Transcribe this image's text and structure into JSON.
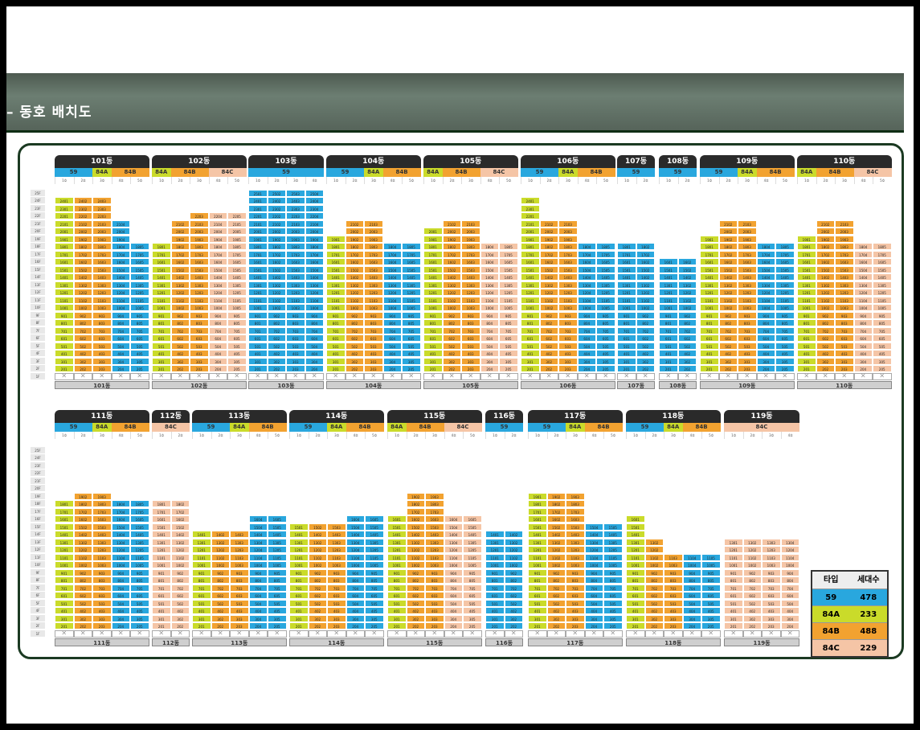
{
  "title": "동호 배치도",
  "colors": {
    "59": "#29a7de",
    "84A": "#cadb2a",
    "84B": "#f2a230",
    "84C": "#f5c5a6"
  },
  "floor_labels": [
    "25F",
    "24F",
    "23F",
    "22F",
    "21F",
    "20F",
    "19F",
    "18F",
    "17F",
    "16F",
    "15F",
    "14F",
    "13F",
    "12F",
    "11F",
    "10F",
    "9F",
    "8F",
    "7F",
    "6F",
    "5F",
    "4F",
    "3F",
    "2F",
    "1F"
  ],
  "buildings": [
    {
      "name": "101동",
      "types": [
        "84A",
        "84B",
        "59"
      ],
      "cols": [
        [
          "84A",
          24
        ],
        [
          "84B",
          24
        ],
        [
          "84B",
          24
        ],
        [
          "59",
          21
        ],
        [
          "59",
          18
        ]
      ]
    },
    {
      "name": "102동",
      "types": [
        "84A",
        "84B",
        "84C"
      ],
      "cols": [
        [
          "84A",
          18
        ],
        [
          "84B",
          21
        ],
        [
          "84B",
          22
        ],
        [
          "84C",
          22
        ],
        [
          "84C",
          22
        ]
      ]
    },
    {
      "name": "103동",
      "types": [
        "59"
      ],
      "cols": [
        [
          "59",
          25
        ],
        [
          "59",
          25
        ],
        [
          "59",
          25
        ],
        [
          "59",
          25
        ]
      ]
    },
    {
      "name": "104동",
      "types": [
        "84A",
        "84B",
        "59"
      ],
      "cols": [
        [
          "84A",
          19
        ],
        [
          "84B",
          21
        ],
        [
          "84B",
          21
        ],
        [
          "59",
          18
        ],
        [
          "59",
          18
        ]
      ]
    },
    {
      "name": "105동",
      "types": [
        "84A",
        "84B",
        "84C"
      ],
      "cols": [
        [
          "84A",
          20
        ],
        [
          "84B",
          21
        ],
        [
          "84B",
          21
        ],
        [
          "84C",
          18
        ],
        [
          "84C",
          18
        ]
      ]
    },
    {
      "name": "106동",
      "types": [
        "84A",
        "84B",
        "59"
      ],
      "cols": [
        [
          "84A",
          24
        ],
        [
          "84B",
          21
        ],
        [
          "84B",
          21
        ],
        [
          "59",
          18
        ],
        [
          "59",
          18
        ]
      ]
    },
    {
      "name": "107동",
      "types": [
        "59"
      ],
      "cols": [
        [
          "59",
          18
        ],
        [
          "59",
          18
        ]
      ]
    },
    {
      "name": "108동",
      "types": [
        "59"
      ],
      "cols": [
        [
          "59",
          16
        ],
        [
          "59",
          16
        ]
      ]
    },
    {
      "name": "109동",
      "types": [
        "84A",
        "84B",
        "59"
      ],
      "cols": [
        [
          "84A",
          19
        ],
        [
          "84B",
          21
        ],
        [
          "84B",
          21
        ],
        [
          "59",
          18
        ],
        [
          "59",
          18
        ]
      ]
    },
    {
      "name": "110동",
      "types": [
        "84A",
        "84B",
        "84C"
      ],
      "cols": [
        [
          "84A",
          19
        ],
        [
          "84B",
          21
        ],
        [
          "84B",
          21
        ],
        [
          "84C",
          18
        ],
        [
          "84C",
          18
        ]
      ]
    },
    {
      "name": "111동",
      "types": [
        "84A",
        "84B",
        "59"
      ],
      "cols": [
        [
          "84A",
          18
        ],
        [
          "84B",
          19
        ],
        [
          "84B",
          19
        ],
        [
          "59",
          18
        ],
        [
          "59",
          18
        ]
      ]
    },
    {
      "name": "112동",
      "types": [
        "84C"
      ],
      "cols": [
        [
          "84C",
          18
        ],
        [
          "84C",
          18
        ]
      ]
    },
    {
      "name": "113동",
      "types": [
        "84A",
        "84B",
        "59"
      ],
      "cols": [
        [
          "84A",
          14
        ],
        [
          "84B",
          14
        ],
        [
          "84B",
          14
        ],
        [
          "59",
          16
        ],
        [
          "59",
          16
        ]
      ]
    },
    {
      "name": "114동",
      "types": [
        "84A",
        "84B",
        "59"
      ],
      "cols": [
        [
          "84A",
          15
        ],
        [
          "84B",
          15
        ],
        [
          "84B",
          15
        ],
        [
          "59",
          16
        ],
        [
          "59",
          16
        ]
      ]
    },
    {
      "name": "115동",
      "types": [
        "84A",
        "84B",
        "84C"
      ],
      "cols": [
        [
          "84A",
          16
        ],
        [
          "84B",
          19
        ],
        [
          "84B",
          19
        ],
        [
          "84C",
          16
        ],
        [
          "84C",
          16
        ]
      ]
    },
    {
      "name": "116동",
      "types": [
        "59"
      ],
      "cols": [
        [
          "59",
          14
        ],
        [
          "59",
          14
        ]
      ]
    },
    {
      "name": "117동",
      "types": [
        "84A",
        "84B",
        "59"
      ],
      "cols": [
        [
          "84A",
          19
        ],
        [
          "84B",
          19
        ],
        [
          "84B",
          19
        ],
        [
          "59",
          15
        ],
        [
          "59",
          15
        ]
      ]
    },
    {
      "name": "118동",
      "types": [
        "84A",
        "84B",
        "59"
      ],
      "cols": [
        [
          "84A",
          16
        ],
        [
          "84B",
          13
        ],
        [
          "84B",
          11
        ],
        [
          "59",
          11
        ],
        [
          "59",
          11
        ]
      ]
    },
    {
      "name": "119동",
      "types": [
        "84C"
      ],
      "cols": [
        [
          "84C",
          13
        ],
        [
          "84C",
          13
        ],
        [
          "84C",
          13
        ],
        [
          "84C",
          13
        ]
      ]
    }
  ],
  "line_labels": [
    "1호",
    "2호",
    "3호",
    "4호",
    "5호"
  ],
  "legend": {
    "header": [
      "타입",
      "세대수"
    ],
    "rows": [
      [
        "59",
        "478"
      ],
      [
        "84A",
        "233"
      ],
      [
        "84B",
        "488"
      ],
      [
        "84C",
        "229"
      ]
    ]
  }
}
